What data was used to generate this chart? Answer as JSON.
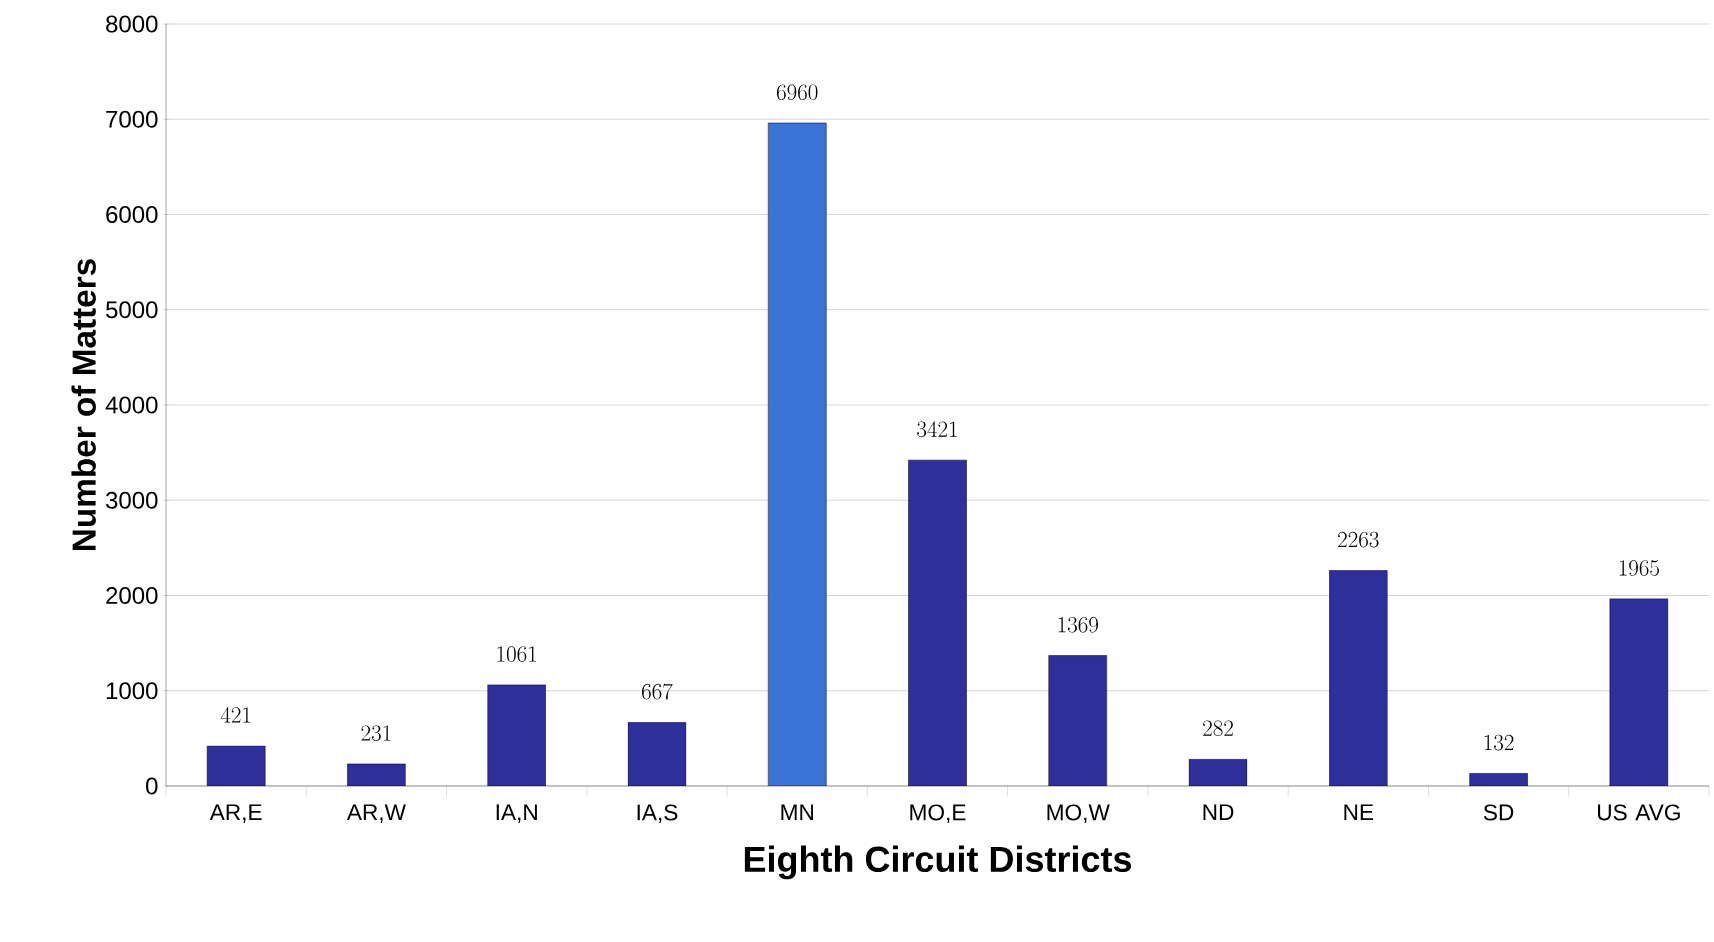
{
  "chart_data": {
    "type": "bar",
    "xlabel": "Eighth Circuit Districts",
    "ylabel": "Number of Matters",
    "categories": [
      "AR,E",
      "AR,W",
      "IA,N",
      "IA,S",
      "MN",
      "MO,E",
      "MO,W",
      "ND",
      "NE",
      "SD",
      "US AVG"
    ],
    "values": [
      421,
      231,
      1061,
      667,
      6960,
      3421,
      1369,
      282,
      2263,
      132,
      1965
    ],
    "colors": [
      "#2f2f9c",
      "#2f2f9c",
      "#2f2f9c",
      "#2f2f9c",
      "#3b74d6",
      "#2f2f9c",
      "#2f2f9c",
      "#2f2f9c",
      "#2f2f9c",
      "#2f2f9c",
      "#2f2f9c"
    ],
    "ylim": [
      0,
      8000
    ],
    "yticks": [
      0,
      1000,
      2000,
      3000,
      4000,
      5000,
      6000,
      7000,
      8000
    ],
    "grid": "y",
    "data_labels": true
  }
}
